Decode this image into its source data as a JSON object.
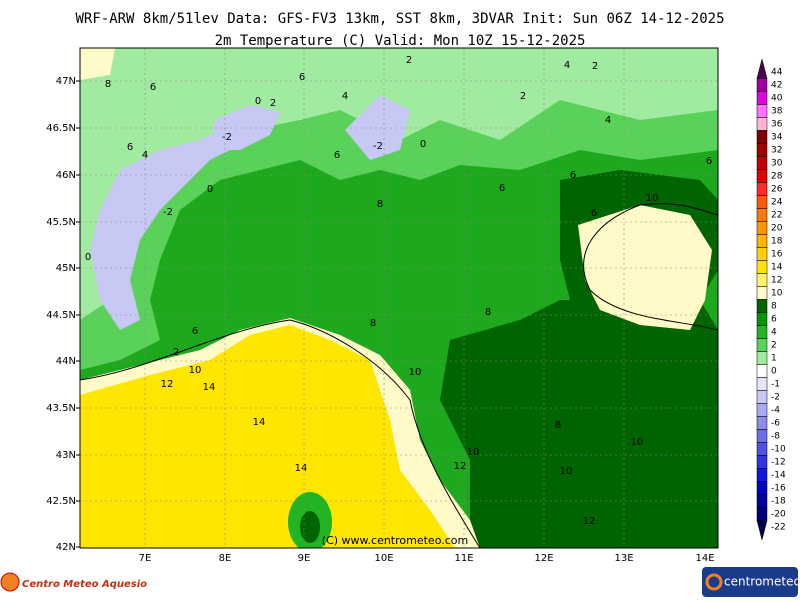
{
  "header": {
    "title": "WRF-ARW 8km/51lev  Data: GFS-FV3 13km, SST 8km, 3DVAR  Init: Sun 06Z 14-12-2025",
    "subtitle": "2m Temperature (C)  Valid: Mon 10Z 15-12-2025"
  },
  "map": {
    "lat_labels": [
      "47N",
      "46.5N",
      "46N",
      "45.5N",
      "45N",
      "44.5N",
      "44N",
      "43.5N",
      "43N",
      "42.5N",
      "42N"
    ],
    "lon_labels": [
      "7E",
      "8E",
      "9E",
      "10E",
      "11E",
      "12E",
      "13E",
      "14E"
    ],
    "contour_labels": [
      8,
      6,
      6,
      4,
      2,
      4,
      2,
      2,
      0,
      2,
      -2,
      -2,
      6,
      4,
      6,
      0,
      4,
      6,
      6,
      6,
      8,
      0,
      -2,
      0,
      6,
      10,
      6,
      2,
      10,
      12,
      14,
      8,
      8,
      10,
      14,
      14,
      8,
      10,
      10,
      12,
      10,
      12
    ],
    "watermark": "(C) www.centrometeo.com"
  },
  "colorbar": {
    "levels": [
      44,
      42,
      40,
      38,
      36,
      34,
      32,
      30,
      28,
      26,
      24,
      22,
      20,
      18,
      16,
      14,
      12,
      10,
      8,
      6,
      4,
      2,
      1,
      0,
      -1,
      -2,
      -4,
      -6,
      -8,
      -10,
      -12,
      -14,
      -16,
      -18,
      -20,
      -22
    ],
    "colors": [
      "#4b004b",
      "#a000a0",
      "#e000e0",
      "#ff70ff",
      "#ffb4d2",
      "#800000",
      "#a00000",
      "#c00000",
      "#e00000",
      "#ff2a2a",
      "#ff5a00",
      "#ff7800",
      "#ff9600",
      "#ffb400",
      "#ffd200",
      "#ffe600",
      "#fff46e",
      "#fffac8",
      "#006400",
      "#009600",
      "#22b422",
      "#5ad25a",
      "#a0eba0",
      "#ffffff",
      "#e6e6fa",
      "#c8c8f5",
      "#aaaaf0",
      "#8c8ceb",
      "#6e6ee6",
      "#5050e6",
      "#3232e6",
      "#1414e6",
      "#0000c8",
      "#0000a0",
      "#000078",
      "#000050"
    ]
  },
  "logos": {
    "left": "Centro Meteo Aquesio",
    "right": "centrometeo"
  }
}
